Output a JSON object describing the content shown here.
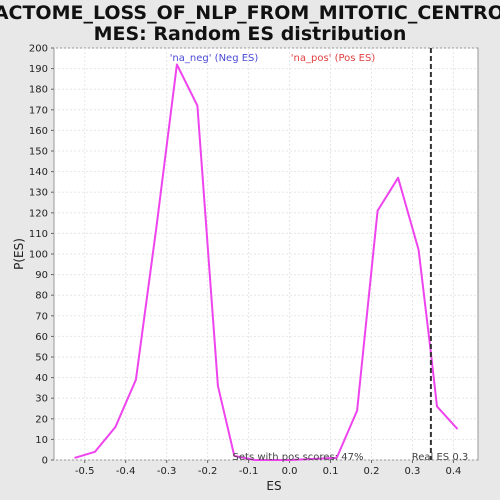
{
  "chart_data": {
    "type": "line",
    "title_lines": [
      "REACTOME_LOSS_OF_NLP_FROM_MITOTIC_CENTROSO",
      "MES: Random ES distribution"
    ],
    "xlabel": "ES",
    "ylabel": "P(ES)",
    "xlim": [
      -0.575,
      0.46
    ],
    "ylim": [
      0,
      200
    ],
    "x_ticks": [
      -0.5,
      -0.4,
      -0.3,
      -0.2,
      -0.1,
      0.0,
      0.1,
      0.2,
      0.3,
      0.4
    ],
    "x_tick_labels": [
      "-0.5",
      "-0.4",
      "-0.3",
      "-0.2",
      "-0.1",
      "0.0",
      "0.1",
      "0.2",
      "0.3",
      "0.4"
    ],
    "y_ticks": [
      0,
      10,
      20,
      30,
      40,
      50,
      60,
      70,
      80,
      90,
      100,
      110,
      120,
      130,
      140,
      150,
      160,
      170,
      180,
      190,
      200
    ],
    "grid": true,
    "series": [
      {
        "color": "#ee44ee",
        "x": [
          -0.525,
          -0.475,
          -0.425,
          -0.375,
          -0.325,
          -0.275,
          -0.225,
          -0.175,
          -0.135,
          -0.085,
          0.0,
          0.115,
          0.165,
          0.215,
          0.265,
          0.315,
          0.345,
          0.36,
          0.41
        ],
        "y": [
          1,
          4,
          16,
          39,
          113,
          192,
          172,
          36,
          2,
          0,
          0,
          1,
          24,
          121,
          137,
          102,
          52,
          26,
          15
        ]
      }
    ],
    "legend": [
      {
        "label": "'na_neg' (Neg ES)",
        "color": "#4a4ad8"
      },
      {
        "label": "'na_pos' (Pos ES)",
        "color": "#e04040"
      }
    ],
    "real_es": {
      "value": 0.345,
      "label": "Real ES 0.3"
    },
    "annotation": "Sets with pos scores: 47%"
  }
}
